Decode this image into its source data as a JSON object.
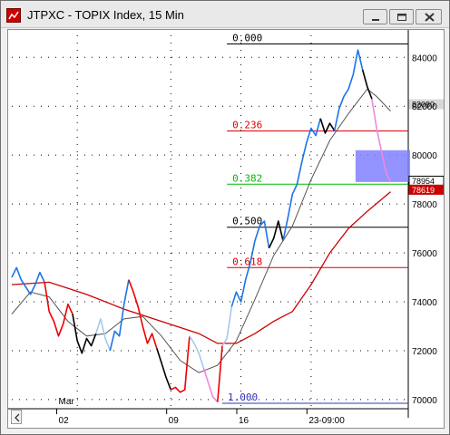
{
  "window": {
    "title": "JTPXC - TOPIX Index, 15 Min",
    "app_icon": "chart-app-icon",
    "controls": [
      "minimize-icon",
      "maximize-icon",
      "close-icon"
    ]
  },
  "chart_data": {
    "type": "line",
    "title": "",
    "y_axis": {
      "ticks": [
        "84000",
        "82000",
        "80000",
        "78000",
        "76000",
        "74000",
        "72000",
        "70000"
      ],
      "tick_values": [
        84000,
        82000,
        80000,
        78000,
        76000,
        74000,
        72000,
        70000
      ],
      "range": [
        69700,
        84900
      ],
      "side": "right"
    },
    "x_axis": {
      "labels": [
        "Mar",
        "02",
        "09",
        "16",
        "23-09:00"
      ],
      "grid": "dotted"
    },
    "price_tags": [
      {
        "label": "82080",
        "value": 82080,
        "style": "gray"
      },
      {
        "label": "78954",
        "value": 78954,
        "style": "white"
      },
      {
        "label": "78619",
        "value": 78619,
        "style": "red"
      }
    ],
    "fibonacci": {
      "levels": [
        {
          "label": "0.000",
          "value": 84550,
          "color": "#000000"
        },
        {
          "label": "0.236",
          "value": 80990,
          "color": "#dd0000"
        },
        {
          "label": "0.382",
          "value": 78810,
          "color": "#00bb00"
        },
        {
          "label": "0.500",
          "value": 77050,
          "color": "#000000"
        },
        {
          "label": "0.618",
          "value": 75400,
          "color": "#dd0000"
        },
        {
          "label": "1.000",
          "value": 69850,
          "color": "#3333bb"
        }
      ]
    },
    "highlight_zone": {
      "from": 78900,
      "to": 80200,
      "color": "#8080ff"
    },
    "series": [
      {
        "kind": "price",
        "points": [
          [
            0,
            75000
          ],
          [
            1,
            75400
          ],
          [
            2,
            74900
          ],
          [
            3,
            74600
          ],
          [
            4,
            74300
          ],
          [
            5,
            74700
          ],
          [
            6,
            75200
          ],
          [
            7,
            74800
          ],
          [
            8,
            73600
          ],
          [
            9,
            73200
          ],
          [
            10,
            72600
          ],
          [
            11,
            73100
          ],
          [
            12,
            73900
          ],
          [
            13,
            73500
          ],
          [
            14,
            72400
          ],
          [
            15,
            71900
          ],
          [
            16,
            72500
          ],
          [
            17,
            72200
          ],
          [
            18,
            72700
          ],
          [
            19,
            73300
          ],
          [
            20,
            72500
          ],
          [
            21,
            72000
          ],
          [
            22,
            72800
          ],
          [
            23,
            72600
          ],
          [
            24,
            73900
          ],
          [
            25,
            74900
          ],
          [
            26,
            74400
          ],
          [
            27,
            73800
          ],
          [
            28,
            73000
          ],
          [
            29,
            72300
          ],
          [
            30,
            72700
          ],
          [
            31,
            72100
          ],
          [
            32,
            71500
          ],
          [
            33,
            70900
          ],
          [
            34,
            70400
          ],
          [
            35,
            70500
          ],
          [
            36,
            70300
          ],
          [
            37,
            70400
          ],
          [
            38,
            72600
          ],
          [
            39,
            72300
          ],
          [
            40,
            71900
          ],
          [
            41,
            71300
          ],
          [
            42,
            70700
          ],
          [
            43,
            70100
          ],
          [
            44,
            69900
          ],
          [
            45,
            72200
          ],
          [
            46,
            72500
          ],
          [
            47,
            73800
          ],
          [
            48,
            74400
          ],
          [
            49,
            74000
          ],
          [
            50,
            74900
          ],
          [
            51,
            75600
          ],
          [
            52,
            76500
          ],
          [
            53,
            77100
          ],
          [
            54,
            77300
          ],
          [
            55,
            76200
          ],
          [
            56,
            76600
          ],
          [
            57,
            77300
          ],
          [
            58,
            76500
          ],
          [
            59,
            77400
          ],
          [
            60,
            78400
          ],
          [
            61,
            78800
          ],
          [
            62,
            79700
          ],
          [
            63,
            80500
          ],
          [
            64,
            81100
          ],
          [
            65,
            80800
          ],
          [
            66,
            81500
          ],
          [
            67,
            80900
          ],
          [
            68,
            81300
          ],
          [
            69,
            81000
          ],
          [
            70,
            81900
          ],
          [
            71,
            82400
          ],
          [
            72,
            82700
          ],
          [
            73,
            83300
          ],
          [
            74,
            84300
          ],
          [
            75,
            83500
          ],
          [
            76,
            82800
          ],
          [
            77,
            82300
          ],
          [
            78,
            81100
          ],
          [
            79,
            80200
          ],
          [
            80,
            79300
          ],
          [
            81,
            78900
          ]
        ],
        "color_segments": [
          {
            "from": 0,
            "to": 7,
            "color": "#1a75e8"
          },
          {
            "from": 7,
            "to": 13,
            "color": "#ee0000"
          },
          {
            "from": 13,
            "to": 18,
            "color": "#000000"
          },
          {
            "from": 18,
            "to": 21,
            "color": "#a6c8ee"
          },
          {
            "from": 21,
            "to": 25,
            "color": "#1a75e8"
          },
          {
            "from": 25,
            "to": 31,
            "color": "#ee0000"
          },
          {
            "from": 31,
            "to": 34,
            "color": "#000000"
          },
          {
            "from": 34,
            "to": 38,
            "color": "#ee0000"
          },
          {
            "from": 38,
            "to": 41,
            "color": "#a6c8ee"
          },
          {
            "from": 41,
            "to": 44,
            "color": "#ee88dd"
          },
          {
            "from": 44,
            "to": 45,
            "color": "#ee0000"
          },
          {
            "from": 45,
            "to": 47,
            "color": "#a6c8ee"
          },
          {
            "from": 47,
            "to": 55,
            "color": "#1a75e8"
          },
          {
            "from": 55,
            "to": 58,
            "color": "#000000"
          },
          {
            "from": 58,
            "to": 66,
            "color": "#1a75e8"
          },
          {
            "from": 66,
            "to": 69,
            "color": "#000000"
          },
          {
            "from": 69,
            "to": 75,
            "color": "#1a75e8"
          },
          {
            "from": 75,
            "to": 77,
            "color": "#000000"
          },
          {
            "from": 77,
            "to": 81,
            "color": "#ee88dd"
          }
        ]
      },
      {
        "kind": "ma_fast",
        "color": "#555555",
        "points": [
          [
            0,
            73500
          ],
          [
            4,
            74400
          ],
          [
            8,
            74200
          ],
          [
            12,
            73200
          ],
          [
            16,
            72600
          ],
          [
            20,
            72700
          ],
          [
            24,
            73300
          ],
          [
            28,
            73400
          ],
          [
            32,
            72600
          ],
          [
            36,
            71600
          ],
          [
            40,
            71100
          ],
          [
            44,
            71400
          ],
          [
            48,
            72400
          ],
          [
            52,
            74100
          ],
          [
            56,
            75900
          ],
          [
            60,
            77100
          ],
          [
            64,
            79000
          ],
          [
            68,
            80600
          ],
          [
            72,
            81700
          ],
          [
            76,
            82700
          ],
          [
            78,
            82400
          ],
          [
            81,
            81800
          ]
        ]
      },
      {
        "kind": "ma_slow",
        "color": "#cc0000",
        "points": [
          [
            0,
            74700
          ],
          [
            8,
            74800
          ],
          [
            16,
            74300
          ],
          [
            24,
            73700
          ],
          [
            32,
            73200
          ],
          [
            40,
            72700
          ],
          [
            44,
            72300
          ],
          [
            48,
            72300
          ],
          [
            52,
            72700
          ],
          [
            56,
            73200
          ],
          [
            60,
            73600
          ],
          [
            64,
            74700
          ],
          [
            68,
            76000
          ],
          [
            72,
            77000
          ],
          [
            76,
            77700
          ],
          [
            81,
            78500
          ]
        ]
      }
    ]
  },
  "controls": {
    "scroll_button": "scroll-left-icon"
  }
}
